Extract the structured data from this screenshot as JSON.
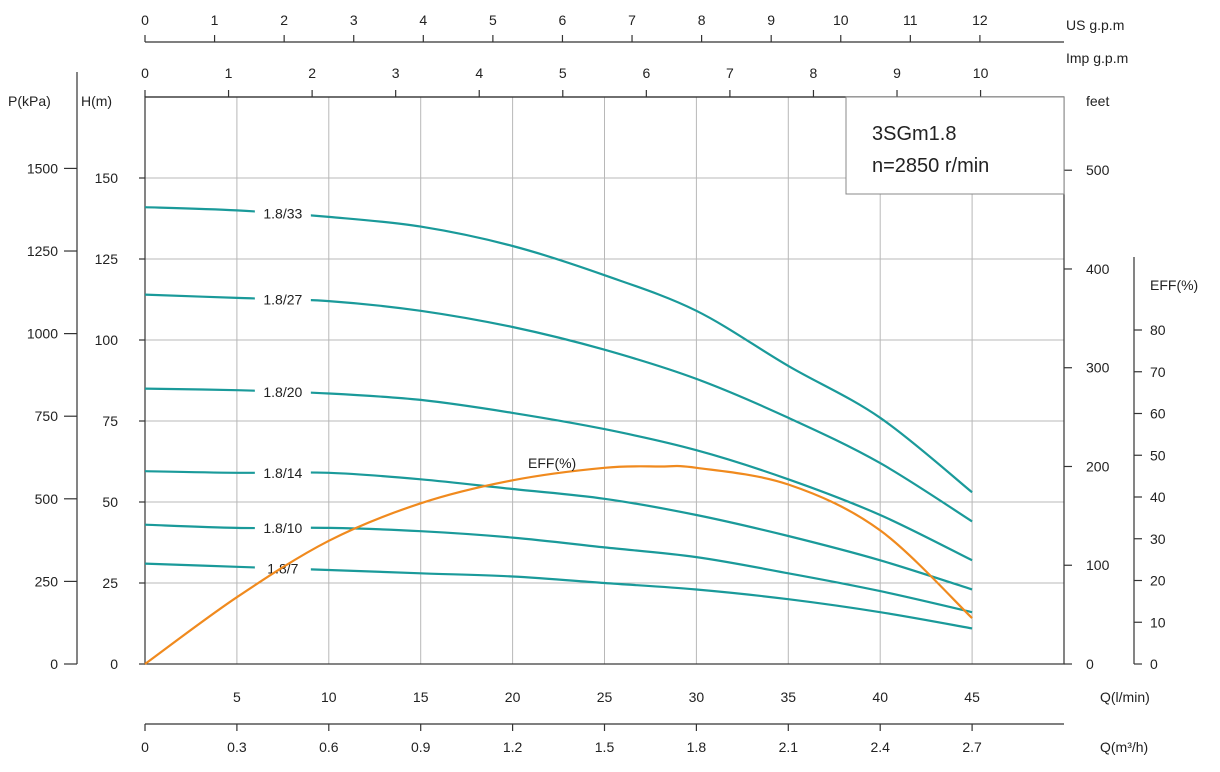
{
  "chart_data": {
    "type": "line",
    "title": "3SGm1.8",
    "subtitle": "n=2850 r/min",
    "x": {
      "label": "Q(l/min)",
      "range": [
        0,
        50
      ],
      "ticks": [
        5,
        10,
        15,
        20,
        25,
        30,
        35,
        40,
        45
      ]
    },
    "x_m3h": {
      "label": "Q(m³/h)",
      "ticks": [
        0,
        0.3,
        0.6,
        0.9,
        1.2,
        1.5,
        1.8,
        2.1,
        2.4,
        2.7
      ],
      "tick_labels": [
        "0",
        "0.3",
        "0.6",
        "0.9",
        "1.2",
        "1.5",
        "1.8",
        "2.1",
        "2.4",
        "2.7"
      ]
    },
    "x_us_gpm": {
      "label": "US  g.p.m",
      "ticks": [
        0,
        1,
        2,
        3,
        4,
        5,
        6,
        7,
        8,
        9,
        10,
        11,
        12
      ]
    },
    "x_imp_gpm": {
      "label": "Imp  g.p.m",
      "ticks": [
        0,
        1,
        2,
        3,
        4,
        5,
        6,
        7,
        8,
        9,
        10
      ]
    },
    "y_head": {
      "label": "H(m)",
      "range": [
        0,
        175
      ],
      "ticks": [
        0,
        25,
        50,
        75,
        100,
        125,
        150
      ]
    },
    "y_pressure": {
      "label": "P(kPa)",
      "ticks": [
        0,
        250,
        500,
        750,
        1000,
        1250,
        1500
      ]
    },
    "y_feet": {
      "label": "feet",
      "ticks": [
        0,
        100,
        200,
        300,
        400,
        500
      ]
    },
    "y_eff": {
      "label": "EFF(%)",
      "ticks": [
        0,
        10,
        20,
        30,
        40,
        50,
        60,
        70,
        80
      ]
    },
    "series": [
      {
        "name": "1.8/33",
        "color": "#1a9a9a",
        "x": [
          0,
          5,
          10,
          15,
          20,
          25,
          30,
          35,
          40,
          45
        ],
        "values": [
          141,
          140,
          138,
          135,
          129,
          120,
          109,
          92,
          76,
          53
        ]
      },
      {
        "name": "1.8/27",
        "color": "#1a9a9a",
        "x": [
          0,
          5,
          10,
          15,
          20,
          25,
          30,
          35,
          40,
          45
        ],
        "values": [
          114,
          113,
          112,
          109,
          104,
          97,
          88,
          76,
          62,
          44
        ]
      },
      {
        "name": "1.8/20",
        "color": "#1a9a9a",
        "x": [
          0,
          5,
          10,
          15,
          20,
          25,
          30,
          35,
          40,
          45
        ],
        "values": [
          85,
          84.5,
          83.5,
          81.5,
          77.5,
          72.5,
          66,
          57,
          46,
          32
        ]
      },
      {
        "name": "1.8/14",
        "color": "#1a9a9a",
        "x": [
          0,
          5,
          10,
          15,
          20,
          25,
          30,
          35,
          40,
          45
        ],
        "values": [
          59.5,
          59,
          59,
          57,
          54,
          51,
          46,
          39.5,
          32,
          23
        ]
      },
      {
        "name": "1.8/10",
        "color": "#1a9a9a",
        "x": [
          0,
          5,
          10,
          15,
          20,
          25,
          30,
          35,
          40,
          45
        ],
        "values": [
          43,
          42,
          42,
          41,
          39,
          36,
          33,
          28,
          22.5,
          16
        ]
      },
      {
        "name": "1.8/7",
        "color": "#1a9a9a",
        "x": [
          0,
          5,
          10,
          15,
          20,
          25,
          30,
          35,
          40,
          45
        ],
        "values": [
          31,
          30,
          29,
          28,
          27,
          25,
          23,
          20,
          16,
          11
        ]
      }
    ],
    "efficiency": {
      "name": "EFF(%)",
      "color": "#f08a1e",
      "axis": "y_eff",
      "x": [
        0,
        5,
        10,
        15,
        20,
        25,
        28,
        30,
        35,
        40,
        45
      ],
      "values": [
        0,
        16,
        29.5,
        38.5,
        44,
        47,
        47.3,
        47,
        43,
        32,
        11
      ]
    },
    "grid": true
  }
}
